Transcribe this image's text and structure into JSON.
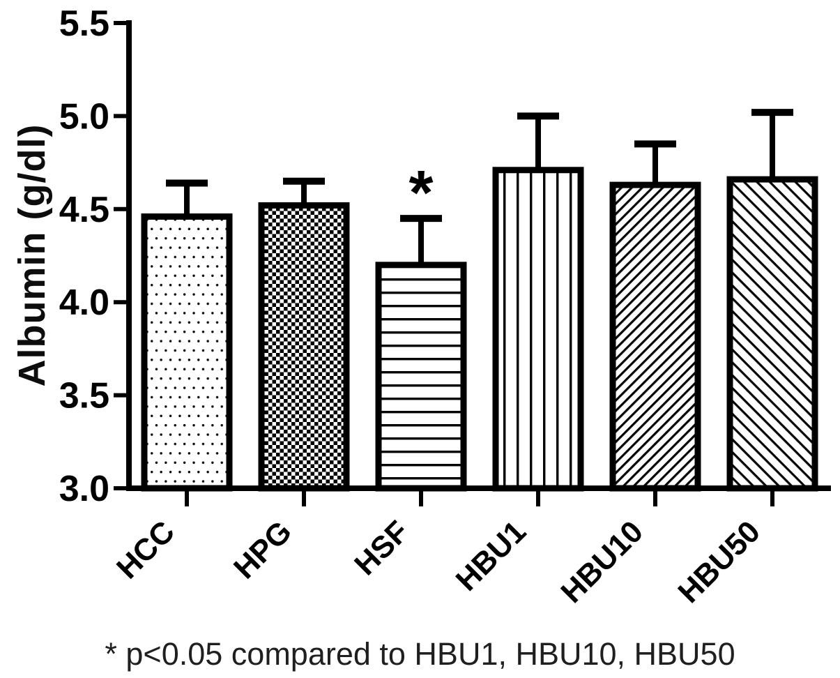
{
  "figure": {
    "background": "#ffffff",
    "ink_color": "#000000",
    "text_color": "#1f1f1f"
  },
  "chart_data": {
    "type": "bar",
    "title": "",
    "ylabel": "Albumin (g/dl)",
    "xlabel": "",
    "ylim": [
      3.0,
      5.5
    ],
    "ytick_labels": [
      "3.0",
      "3.5",
      "4.0",
      "4.5",
      "5.0",
      "5.5"
    ],
    "grid": false,
    "legend": "none",
    "categories": [
      "HCC",
      "HPG",
      "HSF",
      "HBU1",
      "HBU10",
      "HBU50"
    ],
    "values": [
      4.46,
      4.52,
      4.2,
      4.71,
      4.63,
      4.66
    ],
    "errors_upper": [
      0.18,
      0.13,
      0.25,
      0.29,
      0.22,
      0.36
    ],
    "patterns": [
      "dots",
      "checkerboard",
      "horizontal-lines",
      "vertical-lines",
      "diagonal-up",
      "diagonal-down"
    ],
    "annotations": [
      {
        "category": "HSF",
        "symbol": "*"
      }
    ]
  },
  "footnote": "* p<0.05 compared to HBU1, HBU10, HBU50"
}
